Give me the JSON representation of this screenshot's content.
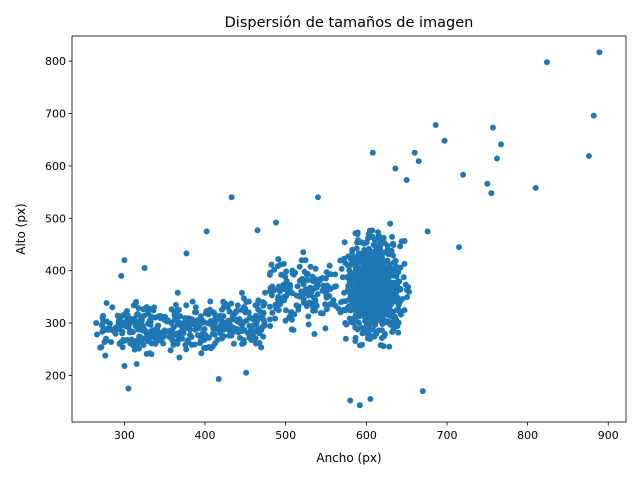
{
  "chart_data": {
    "type": "scatter",
    "title": "Dispersión de tamaños de imagen",
    "xlabel": "Ancho (px)",
    "ylabel": "Alto (px)",
    "xlim": [
      235,
      922
    ],
    "ylim": [
      111,
      848
    ],
    "xticks": [
      300,
      400,
      500,
      600,
      700,
      800,
      900
    ],
    "yticks": [
      200,
      300,
      400,
      500,
      600,
      700,
      800
    ],
    "grid": false,
    "marker_color": "#1f77b4",
    "clusters": [
      {
        "x_range": [
          265,
          480
        ],
        "y_range": [
          200,
          420
        ],
        "count": 420
      },
      {
        "x_range": [
          480,
          560
        ],
        "y_range": [
          230,
          500
        ],
        "count": 160
      },
      {
        "x_range": [
          550,
          665
        ],
        "y_range": [
          190,
          560
        ],
        "count": 900
      }
    ],
    "points": [
      {
        "x": 265,
        "y": 300
      },
      {
        "x": 266,
        "y": 278
      },
      {
        "x": 270,
        "y": 253
      },
      {
        "x": 285,
        "y": 330
      },
      {
        "x": 296,
        "y": 390
      },
      {
        "x": 300,
        "y": 420
      },
      {
        "x": 305,
        "y": 175
      },
      {
        "x": 300,
        "y": 218
      },
      {
        "x": 402,
        "y": 475
      },
      {
        "x": 433,
        "y": 540
      },
      {
        "x": 377,
        "y": 433
      },
      {
        "x": 325,
        "y": 405
      },
      {
        "x": 451,
        "y": 205
      },
      {
        "x": 417,
        "y": 193
      },
      {
        "x": 488,
        "y": 492
      },
      {
        "x": 465,
        "y": 477
      },
      {
        "x": 540,
        "y": 540
      },
      {
        "x": 580,
        "y": 152
      },
      {
        "x": 592,
        "y": 143
      },
      {
        "x": 605,
        "y": 155
      },
      {
        "x": 608,
        "y": 625
      },
      {
        "x": 636,
        "y": 595
      },
      {
        "x": 650,
        "y": 573
      },
      {
        "x": 660,
        "y": 625
      },
      {
        "x": 665,
        "y": 609
      },
      {
        "x": 670,
        "y": 170
      },
      {
        "x": 676,
        "y": 475
      },
      {
        "x": 686,
        "y": 678
      },
      {
        "x": 697,
        "y": 648
      },
      {
        "x": 715,
        "y": 445
      },
      {
        "x": 720,
        "y": 583
      },
      {
        "x": 750,
        "y": 566
      },
      {
        "x": 755,
        "y": 548
      },
      {
        "x": 757,
        "y": 673
      },
      {
        "x": 762,
        "y": 614
      },
      {
        "x": 767,
        "y": 641
      },
      {
        "x": 810,
        "y": 558
      },
      {
        "x": 824,
        "y": 798
      },
      {
        "x": 876,
        "y": 619
      },
      {
        "x": 882,
        "y": 696
      },
      {
        "x": 889,
        "y": 817
      }
    ]
  }
}
